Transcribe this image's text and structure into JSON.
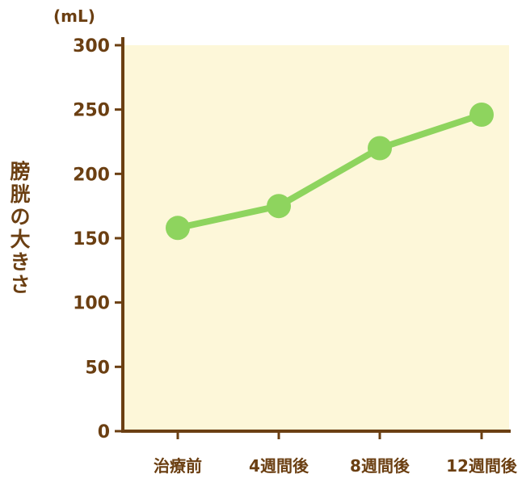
{
  "chart_data": {
    "type": "line",
    "categories": [
      "治療前",
      "4週間後",
      "8週間後",
      "12週間後"
    ],
    "series": [
      {
        "values": [
          158,
          175,
          220,
          246
        ]
      }
    ],
    "unit": "(mL)",
    "ylabel": "膀胱の大きさ",
    "yticks": [
      0,
      50,
      100,
      150,
      200,
      250,
      300
    ],
    "ylim": [
      0,
      300
    ],
    "grid": false,
    "colors": {
      "plot_background": "#fdf7d9",
      "axis": "#6b3f12",
      "line": "#8ed45e"
    }
  }
}
